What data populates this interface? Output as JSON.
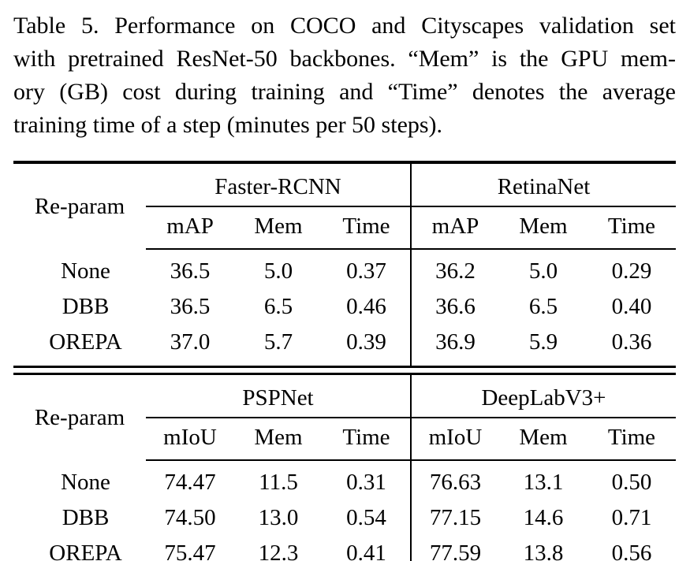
{
  "caption": {
    "lines": [
      "Table 5.   Performance on COCO and Cityscapes validation set",
      "with pretrained ResNet-50 backbones. “Mem” is the GPU mem-",
      "ory (GB) cost during training and “Time” denotes the average",
      "training time of a step (minutes per 50 steps)."
    ]
  },
  "tables": [
    {
      "row_header": "Re-param",
      "groups": [
        "Faster-RCNN",
        "RetinaNet"
      ],
      "subheaders": [
        "mAP",
        "Mem",
        "Time",
        "mAP",
        "Mem",
        "Time"
      ],
      "rows": [
        {
          "label": "None",
          "values": [
            "36.5",
            "5.0",
            "0.37",
            "36.2",
            "5.0",
            "0.29"
          ]
        },
        {
          "label": "DBB",
          "values": [
            "36.5",
            "6.5",
            "0.46",
            "36.6",
            "6.5",
            "0.40"
          ]
        },
        {
          "label": "OREPA",
          "values": [
            "37.0",
            "5.7",
            "0.39",
            "36.9",
            "5.9",
            "0.36"
          ]
        }
      ]
    },
    {
      "row_header": "Re-param",
      "groups": [
        "PSPNet",
        "DeepLabV3+"
      ],
      "subheaders": [
        "mIoU",
        "Mem",
        "Time",
        "mIoU",
        "Mem",
        "Time"
      ],
      "rows": [
        {
          "label": "None",
          "values": [
            "74.47",
            "11.5",
            "0.31",
            "76.63",
            "13.1",
            "0.50"
          ]
        },
        {
          "label": "DBB",
          "values": [
            "74.50",
            "13.0",
            "0.54",
            "77.15",
            "14.6",
            "0.71"
          ]
        },
        {
          "label": "OREPA",
          "values": [
            "75.47",
            "12.3",
            "0.41",
            "77.59",
            "13.8",
            "0.56"
          ]
        }
      ]
    }
  ],
  "colors": {
    "text": "#000000",
    "background": "#ffffff",
    "rule": "#000000"
  }
}
